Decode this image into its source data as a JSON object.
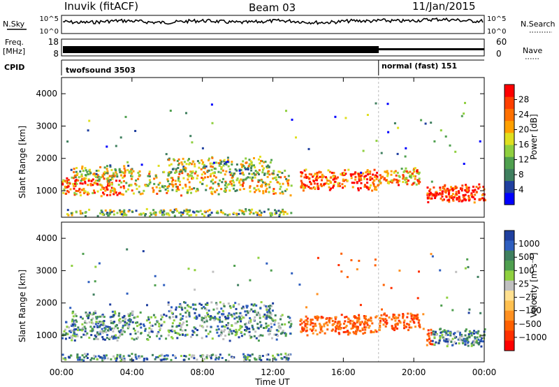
{
  "header": {
    "station": "Inuvik (fitACF)",
    "beam": "Beam 03",
    "date": "11/Jan/2015"
  },
  "left_labels": {
    "nsky": "N.Sky",
    "freq": "Freq.",
    "mhz": "[MHz]",
    "cpid": "CPID"
  },
  "right_labels": {
    "nsearch": "N.Search",
    "nave": "Nave"
  },
  "chart_data": [
    {
      "type": "line",
      "name": "noise",
      "yticks_left": [
        {
          "label": "10^5"
        },
        {
          "label": "10^0"
        }
      ],
      "yticks_right": [
        {
          "label": "10^5"
        },
        {
          "label": "10^0"
        }
      ]
    },
    {
      "type": "line",
      "name": "frequency-nave",
      "yticks_left": [
        {
          "value": 18,
          "label": "18"
        },
        {
          "value": 8,
          "label": "8"
        }
      ],
      "yticks_right": [
        {
          "value": 60,
          "label": "60"
        },
        {
          "value": 0,
          "label": "0"
        }
      ]
    },
    {
      "type": "table",
      "name": "cpid",
      "segments": [
        {
          "label": "twofsound 3503",
          "start_hour": 0,
          "end_hour": 18
        },
        {
          "label": "normal (fast) 151",
          "start_hour": 18,
          "end_hour": 24
        }
      ]
    },
    {
      "type": "heatmap",
      "name": "power",
      "ylabel": "Slant Range [km]",
      "yticks": [
        1000,
        2000,
        3000,
        4000
      ],
      "ylim": [
        180,
        4500
      ],
      "colorbar": {
        "label": "Power [dB]",
        "ticks": [
          4,
          8,
          12,
          16,
          20,
          24,
          28
        ],
        "colors": [
          "#0000ff",
          "#1f3f9f",
          "#3f7f5f",
          "#4fa04f",
          "#8fcf3f",
          "#dfdf1f",
          "#ffa000",
          "#ff7000",
          "#ff3f00",
          "#ff0000"
        ]
      }
    },
    {
      "type": "heatmap",
      "name": "velocity",
      "ylabel": "Slant Range [km]",
      "yticks": [
        1000,
        2000,
        3000,
        4000
      ],
      "ylim": [
        180,
        4500
      ],
      "xlabel": "Time UT",
      "xticks": [
        "00:00",
        "04:00",
        "08:00",
        "12:00",
        "16:00",
        "20:00",
        "00:00"
      ],
      "xlim_hours": [
        0,
        24
      ],
      "colorbar": {
        "label": "Velocity [m s⁻¹]",
        "ticks": [
          "1000",
          "500",
          "100",
          "25",
          "−25",
          "−100",
          "−500",
          "−1000"
        ],
        "colors": [
          "#1f3f9f",
          "#2f5fbf",
          "#3f7f5f",
          "#4f9f4f",
          "#8fd03f",
          "#c0c0c0",
          "#ffe090",
          "#ffc050",
          "#ff9020",
          "#ff6000",
          "#ff3000",
          "#ff0000"
        ]
      }
    }
  ]
}
